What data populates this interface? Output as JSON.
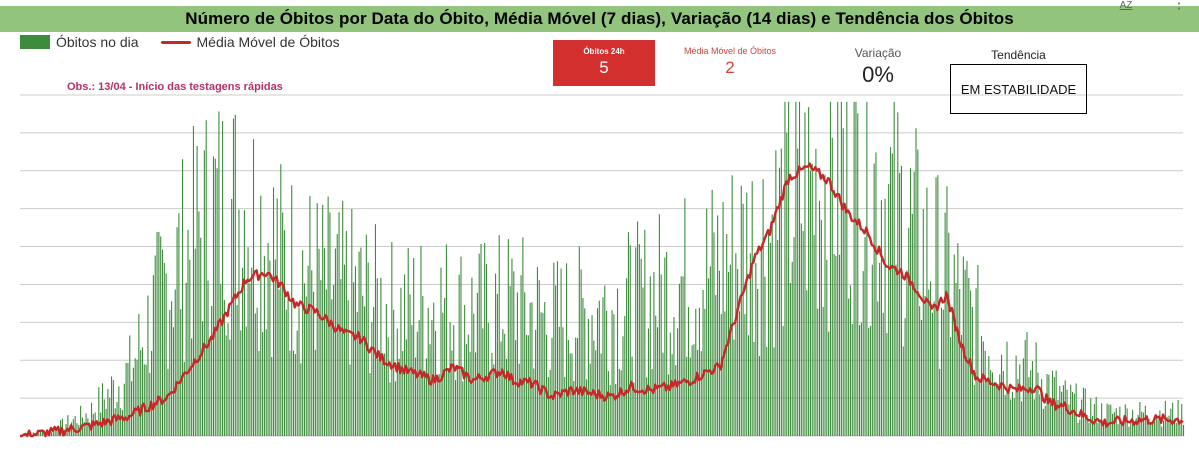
{
  "title": "Número de Óbitos por Data do Óbito, Média Móvel (7 dias), Variação (14 dias) e Tendência dos Óbitos",
  "toolbar": {
    "sort_icon_label": "AZ",
    "more_icon": "more-vert-icon"
  },
  "legend": {
    "bars_label": "Óbitos no dia",
    "line_label": "Média Móvel de Óbitos"
  },
  "annotation": "Obs.: 13/04 - Início das testagens rápidas",
  "scorecards": {
    "obitos24h": {
      "label": "Óbitos 24h",
      "value": "5"
    },
    "media_movel": {
      "label": "Média Móvel de Óbitos",
      "value": "2"
    },
    "variacao": {
      "label": "Variação",
      "value": "0%"
    },
    "tendencia": {
      "label": "Tendência",
      "value": "EM ESTABILIDADE"
    }
  },
  "colors": {
    "title_bg": "#93c47d",
    "bars": "#3d8c3d",
    "line": "#c62828",
    "scorecard_red": "#d32f2f",
    "annotation": "#b5306b",
    "grid": "#cccccc"
  },
  "chart_data": {
    "type": "bar+line",
    "x_count": 640,
    "ylim": [
      0,
      104
    ],
    "grid": true,
    "legend_position": "top-left",
    "series": [
      {
        "name": "Óbitos no dia",
        "type": "bar",
        "smoothed_level_anchors": [
          [
            0,
            0
          ],
          [
            30,
            2
          ],
          [
            70,
            8
          ],
          [
            110,
            22
          ],
          [
            150,
            55
          ],
          [
            195,
            78
          ],
          [
            230,
            80
          ],
          [
            265,
            62
          ],
          [
            300,
            55
          ],
          [
            340,
            50
          ],
          [
            380,
            43
          ],
          [
            420,
            46
          ],
          [
            460,
            43
          ],
          [
            500,
            46
          ],
          [
            540,
            40
          ],
          [
            580,
            43
          ],
          [
            620,
            46
          ],
          [
            660,
            52
          ],
          [
            700,
            58
          ],
          [
            730,
            65
          ],
          [
            760,
            72
          ],
          [
            790,
            82
          ],
          [
            820,
            90
          ],
          [
            850,
            95
          ],
          [
            880,
            82
          ],
          [
            910,
            68
          ],
          [
            940,
            55
          ],
          [
            970,
            38
          ],
          [
            1000,
            27
          ],
          [
            1030,
            22
          ],
          [
            1060,
            13
          ],
          [
            1100,
            8
          ],
          [
            1140,
            8
          ],
          [
            1180,
            8
          ]
        ]
      },
      {
        "name": "Média Móvel de Óbitos",
        "type": "line",
        "anchors": [
          [
            0,
            0
          ],
          [
            30,
            1
          ],
          [
            70,
            3
          ],
          [
            110,
            6
          ],
          [
            150,
            12
          ],
          [
            195,
            30
          ],
          [
            230,
            48
          ],
          [
            250,
            50
          ],
          [
            265,
            46
          ],
          [
            280,
            40
          ],
          [
            300,
            38
          ],
          [
            330,
            31
          ],
          [
            345,
            30
          ],
          [
            365,
            24
          ],
          [
            390,
            20
          ],
          [
            420,
            17
          ],
          [
            440,
            21
          ],
          [
            460,
            17
          ],
          [
            490,
            20
          ],
          [
            500,
            17
          ],
          [
            520,
            16
          ],
          [
            540,
            12
          ],
          [
            560,
            14
          ],
          [
            580,
            13
          ],
          [
            600,
            12
          ],
          [
            620,
            15
          ],
          [
            640,
            14
          ],
          [
            660,
            15
          ],
          [
            680,
            17
          ],
          [
            700,
            20
          ],
          [
            710,
            21
          ],
          [
            730,
            40
          ],
          [
            745,
            54
          ],
          [
            760,
            62
          ],
          [
            780,
            79
          ],
          [
            800,
            82
          ],
          [
            820,
            78
          ],
          [
            840,
            68
          ],
          [
            860,
            62
          ],
          [
            880,
            52
          ],
          [
            895,
            50
          ],
          [
            910,
            45
          ],
          [
            925,
            38
          ],
          [
            940,
            43
          ],
          [
            955,
            28
          ],
          [
            970,
            18
          ],
          [
            990,
            16
          ],
          [
            1010,
            14
          ],
          [
            1030,
            15
          ],
          [
            1045,
            10
          ],
          [
            1060,
            9
          ],
          [
            1080,
            6
          ],
          [
            1100,
            4
          ],
          [
            1140,
            5
          ],
          [
            1180,
            5
          ]
        ]
      }
    ]
  }
}
